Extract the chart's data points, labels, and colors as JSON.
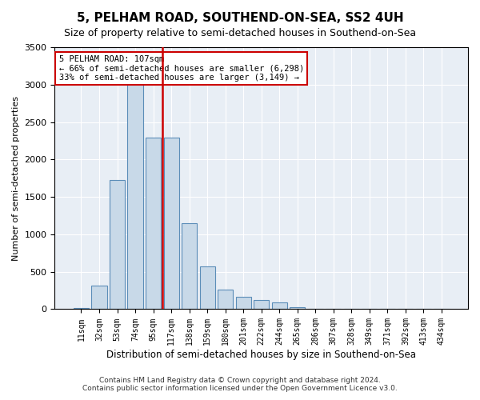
{
  "title": "5, PELHAM ROAD, SOUTHEND-ON-SEA, SS2 4UH",
  "subtitle": "Size of property relative to semi-detached houses in Southend-on-Sea",
  "xlabel": "Distribution of semi-detached houses by size in Southend-on-Sea",
  "ylabel": "Number of semi-detached properties",
  "footer_line1": "Contains HM Land Registry data © Crown copyright and database right 2024.",
  "footer_line2": "Contains public sector information licensed under the Open Government Licence v3.0.",
  "annotation_line1": "5 PELHAM ROAD: 107sqm",
  "annotation_line2": "← 66% of semi-detached houses are smaller (6,298)",
  "annotation_line3": "33% of semi-detached houses are larger (3,149) →",
  "bar_categories": [
    "11sqm",
    "32sqm",
    "53sqm",
    "74sqm",
    "95sqm",
    "117sqm",
    "138sqm",
    "159sqm",
    "180sqm",
    "201sqm",
    "222sqm",
    "244sqm",
    "265sqm",
    "286sqm",
    "307sqm",
    "328sqm",
    "349sqm",
    "371sqm",
    "392sqm",
    "413sqm",
    "434sqm"
  ],
  "bar_values": [
    15,
    310,
    1730,
    3280,
    2290,
    2290,
    1150,
    570,
    265,
    165,
    125,
    95,
    30,
    0,
    0,
    0,
    0,
    0,
    0,
    0,
    0
  ],
  "bar_color": "#c8d9e8",
  "bar_edge_color": "#5b8db8",
  "red_line_color": "#cc0000",
  "background_color": "#e8eef5",
  "ylim": [
    0,
    3500
  ],
  "yticks": [
    0,
    500,
    1000,
    1500,
    2000,
    2500,
    3000,
    3500
  ]
}
